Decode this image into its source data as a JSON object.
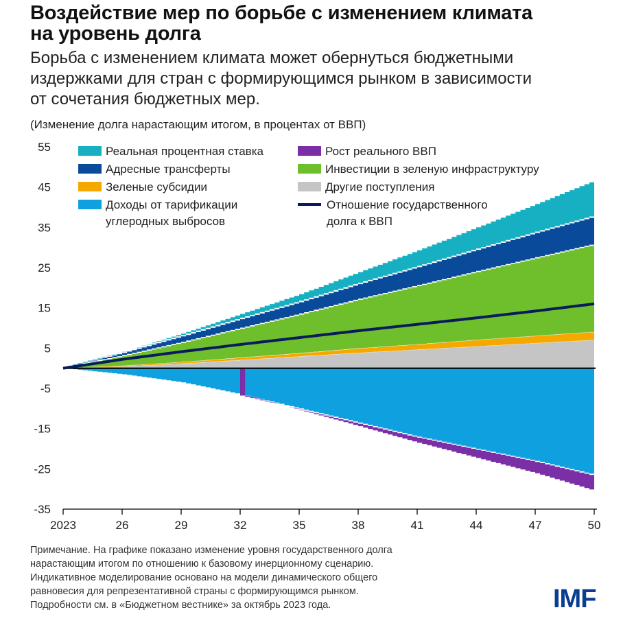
{
  "title_lines": [
    "Воздействие мер по борьбе с изменением климата",
    "на уровень долга"
  ],
  "subtitle_lines": [
    "Борьба с изменением климата может обернуться бюджетными",
    "издержками для стран с формирующимся рынком в зависимости",
    "от сочетания бюджетных мер."
  ],
  "units": "(Изменение долга нарастающим итогом, в процентах от ВВП)",
  "chart_data": {
    "type": "area",
    "x": [
      2023,
      2026,
      2029,
      2032,
      2035,
      2038,
      2041,
      2044,
      2047,
      2050
    ],
    "x_tick_labels": [
      "2023",
      "26",
      "29",
      "32",
      "35",
      "38",
      "41",
      "44",
      "47",
      "50"
    ],
    "y_ticks": [
      55,
      45,
      35,
      25,
      15,
      5,
      -5,
      -15,
      -25,
      -35
    ],
    "ylim": [
      -35,
      55
    ],
    "stacking": "positive series stacked above zero, negative series stacked below zero",
    "series": [
      {
        "name": "Доходы от тарификации углеродных выбросов",
        "color": "#0fa0e0",
        "values": [
          0,
          -1.5,
          -3.5,
          -6.5,
          -10,
          -13.5,
          -17,
          -20,
          -23,
          -26.5
        ]
      },
      {
        "name": "Рост реального ВВП",
        "color": "#7b2fa6",
        "values": [
          0,
          0,
          0,
          0,
          -0.4,
          -0.9,
          -1.5,
          -2.3,
          -3.1,
          -4
        ]
      },
      {
        "name": "Другие поступления",
        "color": "#c5c5c5",
        "values": [
          0,
          0.4,
          1.1,
          2,
          2.9,
          3.8,
          4.6,
          5.4,
          6.2,
          7
        ]
      },
      {
        "name": "Зеленые субсидии",
        "color": "#f5a800",
        "values": [
          0,
          0.2,
          0.4,
          0.6,
          0.8,
          1.1,
          1.3,
          1.6,
          1.8,
          2
        ]
      },
      {
        "name": "Инвестиции в зеленую инфраструктуру",
        "color": "#6fbe2c",
        "values": [
          0,
          2.4,
          4.8,
          7.2,
          9.6,
          12.1,
          14.5,
          16.9,
          19.3,
          21.7
        ]
      },
      {
        "name": "Адресные трансферты",
        "color": "#0a4a9b",
        "values": [
          0,
          0.8,
          1.6,
          2.4,
          3.1,
          3.9,
          4.7,
          5.5,
          6.3,
          7
        ]
      },
      {
        "name": "Реальная процентная ставка",
        "color": "#17b0c2",
        "values": [
          0,
          0.3,
          0.7,
          1.3,
          2,
          3,
          4.2,
          5.6,
          7.2,
          9
        ]
      }
    ],
    "line": {
      "name": "Отношение государственного долга к ВВП",
      "color": "#0a1a5c",
      "values": [
        0,
        2.2,
        4.1,
        5.9,
        7.6,
        9.3,
        10.9,
        12.5,
        14.2,
        16
      ]
    },
    "legend": [
      {
        "label": [
          "Реальная процентная ставка"
        ],
        "color": "#17b0c2",
        "kind": "box"
      },
      {
        "label": [
          "Рост реального ВВП"
        ],
        "color": "#7b2fa6",
        "kind": "box"
      },
      {
        "label": [
          "Адресные трансферты"
        ],
        "color": "#0a4a9b",
        "kind": "box"
      },
      {
        "label": [
          "Инвестиции в зеленую инфраструктуру"
        ],
        "color": "#6fbe2c",
        "kind": "box"
      },
      {
        "label": [
          "Зеленые субсидии"
        ],
        "color": "#f5a800",
        "kind": "box"
      },
      {
        "label": [
          "Другие поступления"
        ],
        "color": "#c5c5c5",
        "kind": "box"
      },
      {
        "label": [
          "Доходы от тарификации",
          "углеродных выбросов"
        ],
        "color": "#0fa0e0",
        "kind": "box"
      },
      {
        "label": [
          "Отношение государственного",
          "долга к ВВП"
        ],
        "color": "#0a1a5c",
        "kind": "line"
      }
    ]
  },
  "note_lines": [
    "Примечание. На графике показано изменение уровня государственного долга",
    "нарастающим итогом по отношению к базовому инерционному сценарию.",
    "Индикативное моделирование основано на модели динамического общего",
    "равновесия для репрезентативной страны с формирующимся рынком.",
    "Подробности см. в «Бюджетном вестнике» за октябрь 2023 года."
  ],
  "logo": "IMF"
}
